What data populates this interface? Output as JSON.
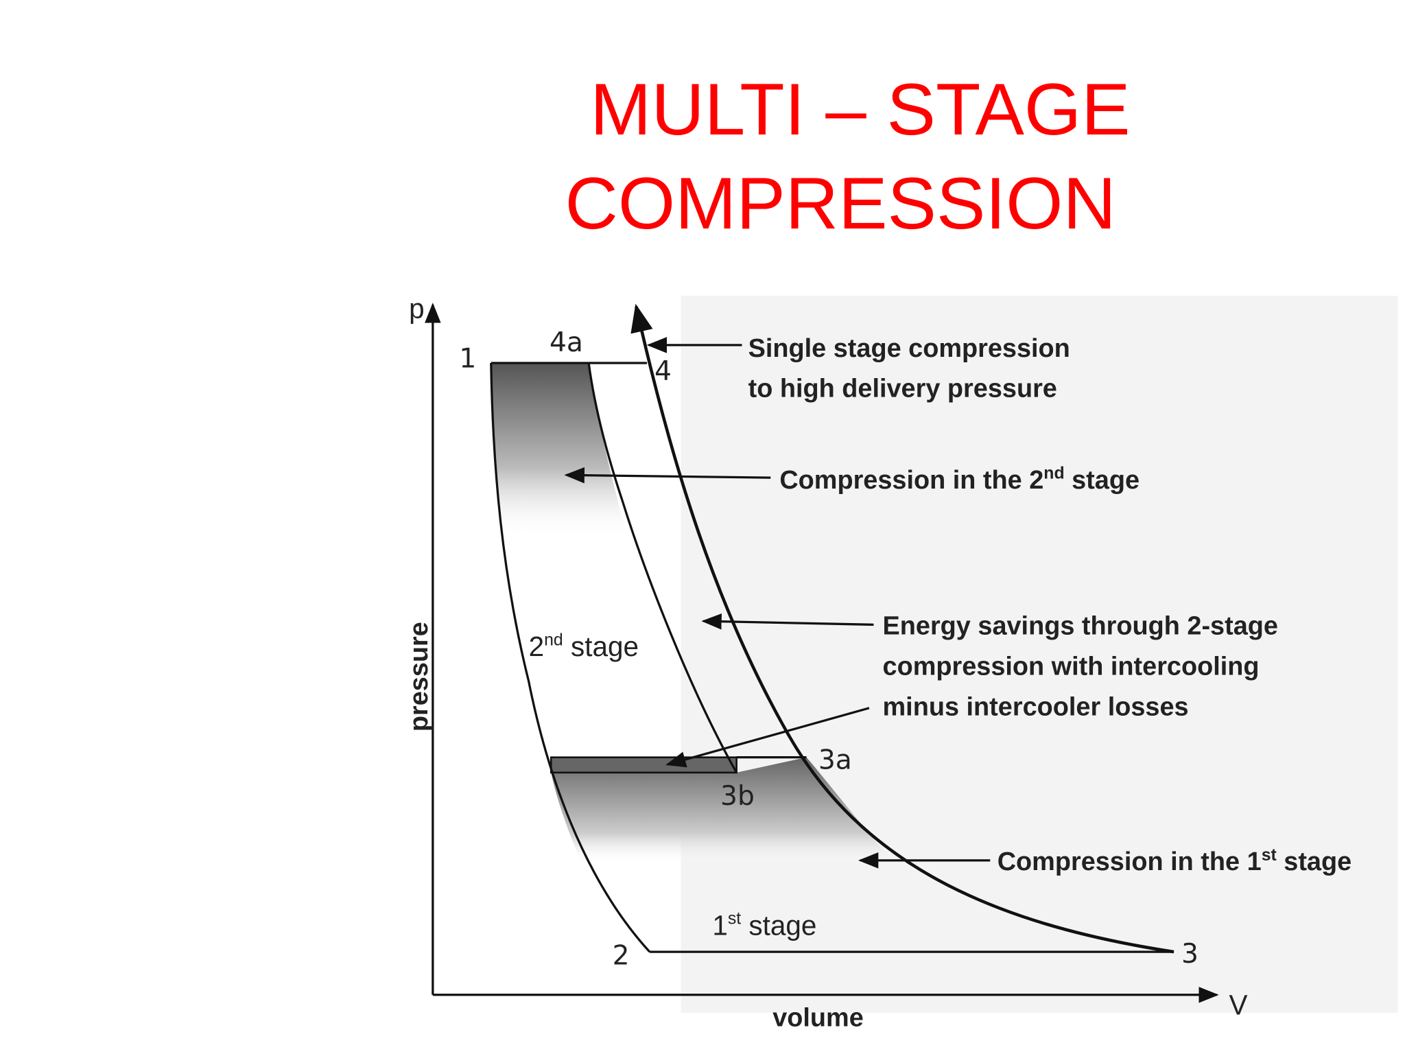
{
  "header": {
    "title_lines": [
      "MULTI – STAGE",
      "COMPRESSION"
    ]
  },
  "axes": {
    "y_symbol": "p",
    "y_label": "pressure",
    "x_symbol": "V",
    "x_label": "volume"
  },
  "points": {
    "p1": "1",
    "p4a": "4a",
    "p4": "4",
    "p3a": "3a",
    "p3b": "3b",
    "p2": "2",
    "p3": "3"
  },
  "regions": {
    "second": {
      "number": "2",
      "sup": "nd",
      "rest": " stage"
    },
    "first": {
      "number": "1",
      "sup": "st",
      "rest": " stage"
    }
  },
  "annotations": {
    "single_stage": {
      "lines": [
        "Single stage compression",
        "to high delivery pressure"
      ]
    },
    "second_stage": {
      "text": "Compression in the 2",
      "sup": "nd",
      "rest": " stage"
    },
    "energy_savings": {
      "lines": [
        "Energy savings through 2-stage",
        "compression with intercooling",
        "minus intercooler losses"
      ]
    },
    "first_stage": {
      "text": "Compression in the 1",
      "sup": "st",
      "rest": " stage"
    }
  }
}
